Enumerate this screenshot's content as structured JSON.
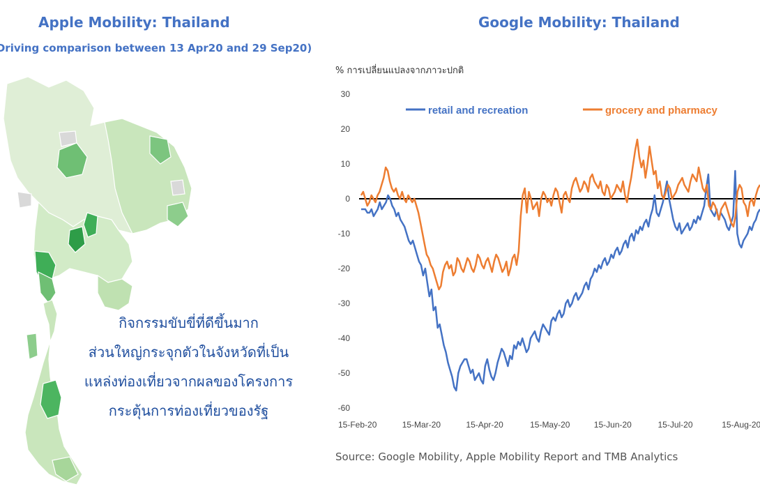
{
  "apple": {
    "title": "Apple Mobility: Thailand",
    "subtitle": "(Driving comparison between 13 Apr20 and 29 Sep20)",
    "callout": [
      "กิจกรรมขับขี่ที่ดีขึ้นมาก",
      "ส่วนใหญ่กระจุกตัวในจังหวัดที่เป็น",
      "แหล่งท่องเที่ยวจากผลของโครงการ",
      "กระตุ้นการท่องเที่ยวของรัฐ"
    ],
    "colors": {
      "light": "#e3f1dc",
      "mid": "#a7d69a",
      "dark": "#4cb560",
      "darkest": "#2e9d48",
      "grey": "#d9d9d9"
    }
  },
  "google": {
    "title": "Google Mobility: Thailand"
  },
  "source": "Source: Google Mobility, Apple Mobility Report and TMB Analytics",
  "chart_data": {
    "type": "line",
    "title": "Google Mobility: Thailand",
    "ylabel": "% การเปลี่ยนแปลงจากภาวะปกติ",
    "xlabel": "",
    "ylim": [
      -60,
      30
    ],
    "yticks": [
      30,
      20,
      10,
      0,
      -10,
      -20,
      -30,
      -40,
      -50,
      -60
    ],
    "xticks": [
      "15-Feb-20",
      "15-Mar-20",
      "15-Apr-20",
      "15-May-20",
      "15-Jun-20",
      "15-Jul-20",
      "15-Aug-20"
    ],
    "zero_line": true,
    "grid": false,
    "legend": "top",
    "series": [
      {
        "name": "retail and recreation",
        "color": "#4472c4",
        "values": [
          -3,
          -3,
          -3,
          -4,
          -4,
          -3,
          -5,
          -4,
          -3,
          -1,
          -3,
          -2,
          -1,
          1,
          0,
          -2,
          -3,
          -5,
          -4,
          -6,
          -7,
          -8,
          -10,
          -12,
          -13,
          -12,
          -14,
          -16,
          -18,
          -19,
          -22,
          -20,
          -24,
          -28,
          -26,
          -32,
          -31,
          -37,
          -36,
          -39,
          -42,
          -44,
          -47,
          -49,
          -51,
          -54,
          -55,
          -50,
          -48,
          -47,
          -46,
          -46,
          -48,
          -50,
          -49,
          -52,
          -51,
          -50,
          -52,
          -53,
          -48,
          -46,
          -49,
          -51,
          -52,
          -50,
          -47,
          -45,
          -43,
          -44,
          -46,
          -48,
          -45,
          -46,
          -42,
          -43,
          -41,
          -42,
          -40,
          -42,
          -44,
          -43,
          -40,
          -39,
          -38,
          -40,
          -41,
          -38,
          -36,
          -37,
          -38,
          -39,
          -35,
          -34,
          -35,
          -33,
          -32,
          -34,
          -33,
          -30,
          -29,
          -31,
          -30,
          -28,
          -27,
          -29,
          -28,
          -27,
          -25,
          -24,
          -26,
          -23,
          -22,
          -20,
          -21,
          -19,
          -20,
          -18,
          -17,
          -19,
          -18,
          -16,
          -17,
          -15,
          -14,
          -16,
          -15,
          -13,
          -12,
          -14,
          -11,
          -10,
          -12,
          -9,
          -10,
          -8,
          -9,
          -7,
          -6,
          -8,
          -5,
          -3,
          1,
          -4,
          -5,
          -3,
          -1,
          2,
          5,
          0,
          -3,
          -6,
          -8,
          -9,
          -7,
          -10,
          -9,
          -8,
          -7,
          -9,
          -8,
          -6,
          -7,
          -5,
          -6,
          -4,
          -2,
          3,
          7,
          -3,
          -4,
          -5,
          -3,
          -6,
          -4,
          -5,
          -6,
          -8,
          -9,
          -7,
          -5,
          8,
          -10,
          -13,
          -14,
          -12,
          -11,
          -10,
          -8,
          -9,
          -7,
          -6,
          -4,
          -3
        ],
        "spikes_note": ""
      },
      {
        "name": "grocery and pharmacy",
        "color": "#ed7d31",
        "values": [
          1,
          2,
          0,
          -2,
          -1,
          1,
          0,
          -1,
          1,
          2,
          4,
          6,
          9,
          8,
          5,
          3,
          2,
          3,
          1,
          0,
          2,
          0,
          -1,
          1,
          0,
          -1,
          0,
          -2,
          -4,
          -7,
          -10,
          -13,
          -16,
          -17,
          -19,
          -20,
          -22,
          -24,
          -26,
          -25,
          -21,
          -19,
          -18,
          -20,
          -19,
          -22,
          -21,
          -17,
          -18,
          -20,
          -21,
          -19,
          -17,
          -18,
          -20,
          -21,
          -19,
          -16,
          -17,
          -19,
          -20,
          -18,
          -17,
          -19,
          -21,
          -18,
          -16,
          -17,
          -19,
          -21,
          -20,
          -18,
          -22,
          -20,
          -17,
          -16,
          -19,
          -15,
          -5,
          1,
          3,
          -4,
          2,
          0,
          -3,
          -2,
          -1,
          -5,
          0,
          2,
          1,
          -1,
          0,
          -2,
          1,
          3,
          2,
          -1,
          -4,
          1,
          2,
          0,
          -1,
          3,
          5,
          6,
          4,
          2,
          3,
          5,
          4,
          2,
          6,
          7,
          5,
          4,
          3,
          5,
          2,
          1,
          4,
          3,
          0,
          1,
          2,
          4,
          3,
          2,
          5,
          1,
          -1,
          3,
          6,
          10,
          14,
          17,
          12,
          9,
          11,
          6,
          10,
          15,
          11,
          7,
          8,
          3,
          5,
          1,
          0,
          2,
          4,
          3,
          0,
          1,
          2,
          4,
          5,
          6,
          4,
          3,
          2,
          5,
          7,
          6,
          5,
          9,
          6,
          3,
          2,
          4,
          -2,
          -3,
          -1,
          -2,
          -4,
          -6,
          -3,
          -2,
          -1,
          -3,
          -5,
          -7,
          -8,
          -5,
          2,
          4,
          3,
          -1,
          -2,
          -5,
          -1,
          0,
          -2,
          1,
          3,
          4
        ]
      }
    ]
  }
}
